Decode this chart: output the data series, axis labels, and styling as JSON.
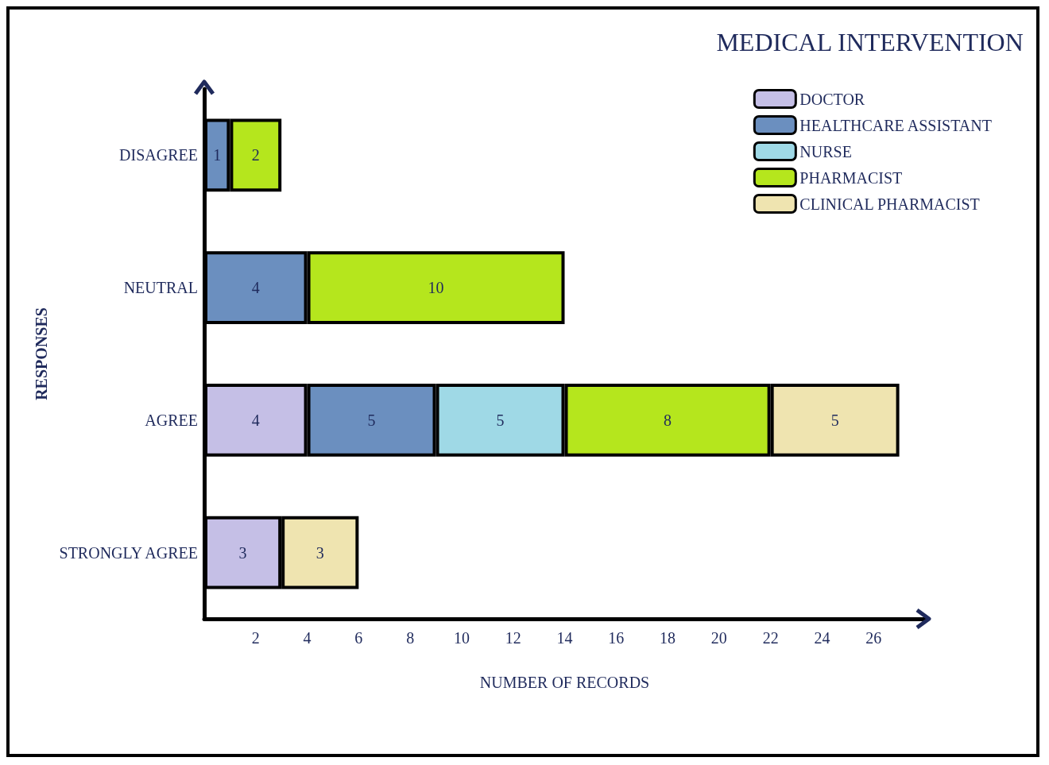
{
  "chart_data": {
    "type": "bar",
    "title": "MEDICAL INTERVENTION",
    "xlabel": "NUMBER OF RECORDS",
    "ylabel": "RESPONSES",
    "orientation": "horizontal",
    "stacked": true,
    "categories": [
      "DISAGREE",
      "NEUTRAL",
      "AGREE",
      "STRONGLY AGREE"
    ],
    "series": [
      {
        "name": "DOCTOR",
        "color": "#c5bfe6",
        "values": [
          null,
          null,
          4,
          3
        ]
      },
      {
        "name": "HEALTHCARE ASSISTANT",
        "color": "#6b8fbf",
        "values": [
          1,
          4,
          5,
          null
        ]
      },
      {
        "name": "NURSE",
        "color": "#9fd9e6",
        "values": [
          null,
          null,
          5,
          null
        ]
      },
      {
        "name": "PHARMACIST",
        "color": "#b5e61d",
        "values": [
          2,
          10,
          8,
          null
        ]
      },
      {
        "name": "CLINICAL PHARMACIST",
        "color": "#efe4b0",
        "values": [
          null,
          null,
          5,
          3
        ]
      }
    ],
    "xlim": [
      0,
      28
    ],
    "xticks": [
      2,
      4,
      6,
      8,
      10,
      12,
      14,
      16,
      18,
      20,
      22,
      24,
      26
    ],
    "data_labels": true,
    "legend": "top right",
    "grid": false
  }
}
